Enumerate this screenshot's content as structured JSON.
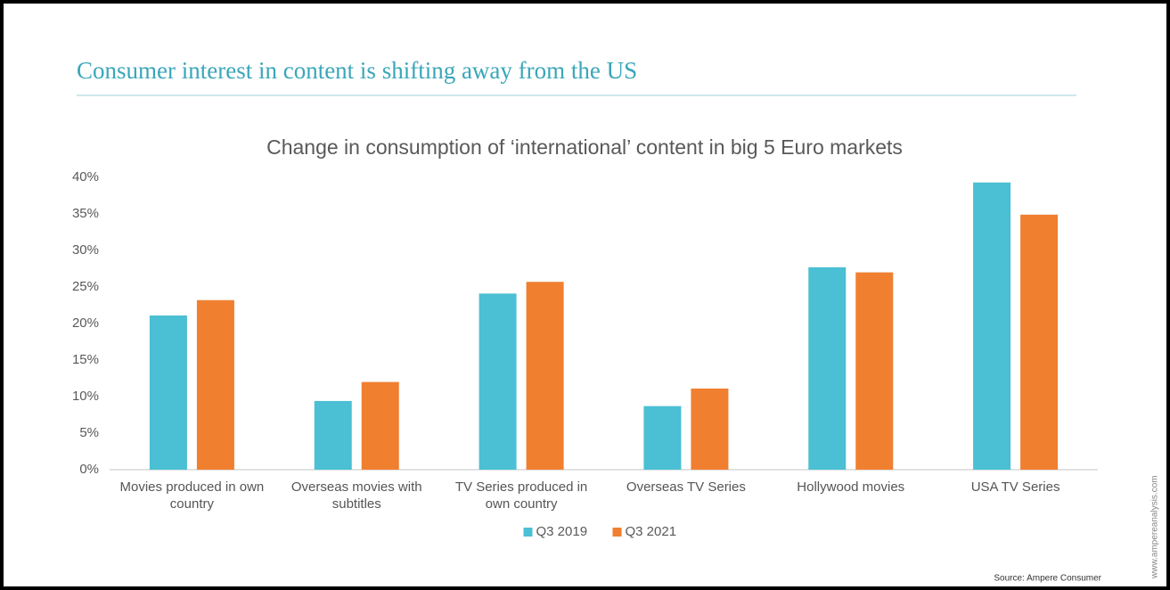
{
  "slide_title": "Consumer interest in content is shifting away from the US",
  "chart_data": {
    "type": "bar",
    "title": "Change in consumption of ‘international’ content in big 5 Euro markets",
    "categories": [
      "Movies produced in own country",
      "Overseas movies with subtitles",
      "TV Series produced in own country",
      "Overseas TV Series",
      "Hollywood movies",
      "USA TV Series"
    ],
    "series": [
      {
        "name": "Q3 2019",
        "color": "#4bbfd3",
        "values": [
          21.1,
          9.4,
          24.1,
          8.7,
          27.7,
          39.3
        ]
      },
      {
        "name": "Q3 2021",
        "color": "#f07f30",
        "values": [
          23.2,
          12.0,
          25.7,
          11.1,
          27.0,
          34.9
        ]
      }
    ],
    "ylim": [
      0,
      40
    ],
    "yticks": [
      {
        "value": 0,
        "label": "0%"
      },
      {
        "value": 5,
        "label": "5%"
      },
      {
        "value": 10,
        "label": "10%"
      },
      {
        "value": 15,
        "label": "15%"
      },
      {
        "value": 20,
        "label": "20%"
      },
      {
        "value": 25,
        "label": "25%"
      },
      {
        "value": 30,
        "label": "30%"
      },
      {
        "value": 35,
        "label": "35%"
      },
      {
        "value": 40,
        "label": "40%"
      }
    ],
    "grid": false,
    "legend": "bottom"
  },
  "source": "Source: Ampere Consumer",
  "website": "www.ampereanalysis.com"
}
